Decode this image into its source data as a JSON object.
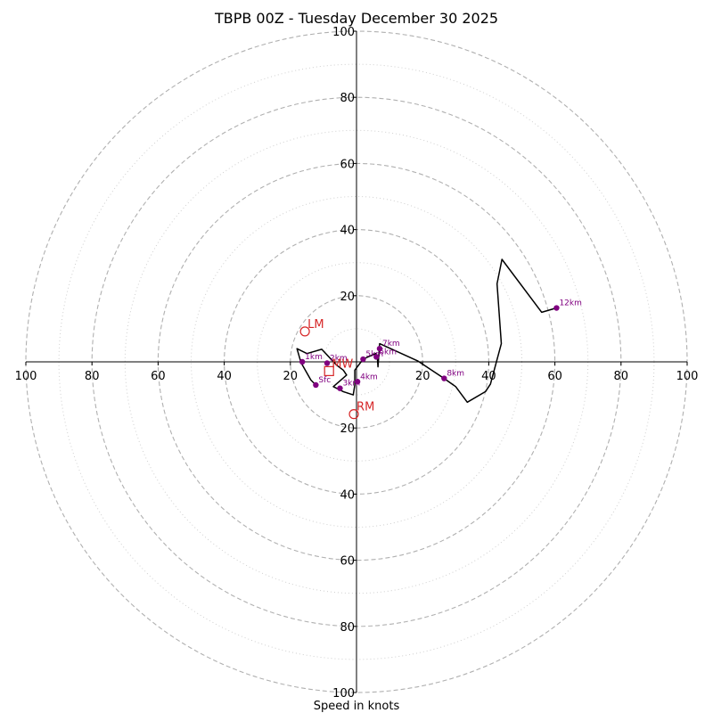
{
  "chart_data": {
    "type": "line",
    "title": "TBPB 00Z - Tuesday December 30 2025",
    "xlabel": "Speed in knots",
    "ylabel": "",
    "xlim": [
      -100,
      100
    ],
    "ylim": [
      -100,
      100
    ],
    "ring_major": [
      20,
      40,
      60,
      80,
      100
    ],
    "ring_minor": [
      10,
      30,
      50,
      70,
      90
    ],
    "tick_values": [
      20,
      40,
      60,
      80,
      100
    ],
    "hodograph": [
      [
        -12.3,
        -7.0
      ],
      [
        -13.8,
        -5.5
      ],
      [
        -16.8,
        -0.2
      ],
      [
        -18.0,
        4.0
      ],
      [
        -15.0,
        2.5
      ],
      [
        -10.5,
        3.8
      ],
      [
        -6.0,
        -1.0
      ],
      [
        -4.0,
        -2.5
      ],
      [
        -3.0,
        -4.0
      ],
      [
        -7.0,
        -7.5
      ],
      [
        -4.0,
        -9.0
      ],
      [
        -1.0,
        -10.0
      ],
      [
        -0.5,
        -7.0
      ],
      [
        -0.5,
        -2.5
      ],
      [
        2.0,
        0.8
      ],
      [
        5.8,
        2.5
      ],
      [
        6.3,
        1.3
      ],
      [
        6.5,
        -1.5
      ],
      [
        7.0,
        5.5
      ],
      [
        18.5,
        0.3
      ],
      [
        26.5,
        -5.0
      ],
      [
        30.0,
        -7.5
      ],
      [
        33.5,
        -12.2
      ],
      [
        39.0,
        -9.0
      ],
      [
        40.5,
        -6.7
      ],
      [
        43.8,
        5.5
      ],
      [
        42.5,
        23.6
      ],
      [
        44.0,
        31.0
      ],
      [
        56.0,
        15.0
      ],
      [
        60.5,
        16.3
      ]
    ],
    "markers": [
      {
        "label": "Sfc",
        "u": -12.3,
        "v": -7.0
      },
      {
        "label": "1km",
        "u": -16.4,
        "v": 0.0
      },
      {
        "label": "2km",
        "u": -8.9,
        "v": -0.4
      },
      {
        "label": "3km",
        "u": -5.0,
        "v": -8.0
      },
      {
        "label": "4km",
        "u": 0.3,
        "v": -6.0
      },
      {
        "label": "5km",
        "u": 2.0,
        "v": 0.8
      },
      {
        "label": "6km",
        "u": 6.0,
        "v": 1.5
      },
      {
        "label": "7km",
        "u": 7.0,
        "v": 4.0
      },
      {
        "label": "8km",
        "u": 26.5,
        "v": -5.0
      },
      {
        "label": "12km",
        "u": 60.5,
        "v": 16.3
      }
    ],
    "motions": [
      {
        "label": "LM",
        "u": -15.6,
        "v": 9.2,
        "shape": "circle"
      },
      {
        "label": "RM",
        "u": -0.8,
        "v": -15.8,
        "shape": "circle"
      },
      {
        "label": "MW",
        "u": -8.3,
        "v": -2.8,
        "shape": "square"
      }
    ],
    "colors": {
      "hodograph": "#000000",
      "marker": "#800080",
      "motion": "#d62728",
      "grid": "#b0b0b0",
      "axis": "#000000"
    }
  }
}
